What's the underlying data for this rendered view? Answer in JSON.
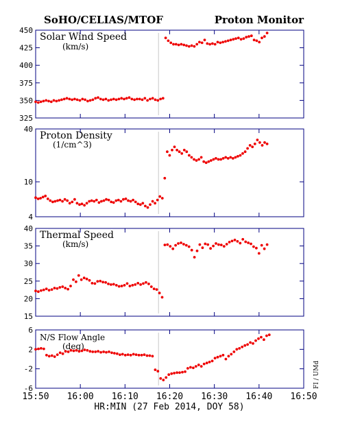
{
  "header": {
    "left": "SoHO/CELIAS/MTOF",
    "right": "Proton Monitor"
  },
  "xaxis": {
    "title": "HR:MIN (27 Feb 2014, DOY 58)",
    "range_minutes": [
      950,
      1010
    ],
    "ticks": [
      {
        "m": 950,
        "label": "15:50"
      },
      {
        "m": 960,
        "label": "16:00"
      },
      {
        "m": 970,
        "label": "16:10"
      },
      {
        "m": 980,
        "label": "16:20"
      },
      {
        "m": 990,
        "label": "16:30"
      },
      {
        "m": 1000,
        "label": "16:40"
      },
      {
        "m": 1010,
        "label": "16:50"
      }
    ],
    "boundary_minute": 977.5
  },
  "side_label": "FI / UMd",
  "point_color": "#ee0000",
  "chart_data": [
    {
      "type": "scatter",
      "title": "Solar Wind Speed",
      "units": "(km/s)",
      "ylim": [
        325,
        450
      ],
      "yticks": [
        325,
        350,
        375,
        400,
        425,
        450
      ],
      "ytick_labels": [
        "325",
        "350",
        "375",
        "400",
        "425",
        "450"
      ],
      "y": [
        348,
        347,
        348,
        349,
        350,
        349,
        348,
        350,
        349,
        350,
        351,
        352,
        353,
        352,
        351,
        352,
        351,
        350,
        352,
        351,
        349,
        350,
        351,
        353,
        354,
        352,
        351,
        352,
        350,
        351,
        352,
        351,
        352,
        353,
        352,
        353,
        354,
        352,
        351,
        352,
        352,
        351,
        353,
        350,
        352,
        353,
        351,
        350,
        352,
        353,
        439,
        435,
        432,
        430,
        430,
        429,
        430,
        429,
        428,
        427,
        428,
        427,
        430,
        433,
        432,
        436,
        431,
        430,
        431,
        430,
        433,
        432,
        433,
        434,
        435,
        436,
        437,
        438,
        439,
        437,
        438,
        440,
        441,
        442,
        436,
        435,
        433,
        439,
        441,
        446
      ],
      "x_start": 950,
      "x_end": 1001.8
    },
    {
      "type": "scatter",
      "title": "Proton Density",
      "units": "(1/cm^3)",
      "log": true,
      "ylim": [
        4,
        40
      ],
      "yticks": [
        4,
        10,
        40
      ],
      "ytick_labels": [
        "4",
        "10",
        "40"
      ],
      "y": [
        6.6,
        6.4,
        6.5,
        6.7,
        6.9,
        6.4,
        6.1,
        5.9,
        6.0,
        6.1,
        6.2,
        6.0,
        6.3,
        6.1,
        5.7,
        5.9,
        6.3,
        5.7,
        5.5,
        5.6,
        5.4,
        5.7,
        6.0,
        6.1,
        6.0,
        6.2,
        5.8,
        6.0,
        6.1,
        6.3,
        6.2,
        5.9,
        5.8,
        6.1,
        6.2,
        6.0,
        6.3,
        6.4,
        6.1,
        6.0,
        6.2,
        5.9,
        5.6,
        5.5,
        5.7,
        5.3,
        5.1,
        5.5,
        6.0,
        5.7,
        6.2,
        6.8,
        6.5,
        11.0,
        22.0,
        20.0,
        23.0,
        25.0,
        23.0,
        22.0,
        21.0,
        23.0,
        22.0,
        20.0,
        19.0,
        18.0,
        17.5,
        18.0,
        19.0,
        17.0,
        16.5,
        17.0,
        17.5,
        18.0,
        18.5,
        18.0,
        18.0,
        18.5,
        19.0,
        18.5,
        19.0,
        18.5,
        19.0,
        19.5,
        20.0,
        21.0,
        22.0,
        24.0,
        26.0,
        25.0,
        27.0,
        30.0,
        28.0,
        26.0,
        28.0,
        27.0
      ],
      "x_start": 950,
      "x_end": 1001.8
    },
    {
      "type": "scatter",
      "title": "Thermal Speed",
      "units": "(km/s)",
      "ylim": [
        15,
        40
      ],
      "yticks": [
        15,
        20,
        25,
        30,
        35,
        40
      ],
      "ytick_labels": [
        "15",
        "20",
        "25",
        "30",
        "35",
        "40"
      ],
      "y": [
        22.2,
        22.0,
        22.3,
        22.5,
        22.8,
        22.4,
        22.6,
        23.0,
        22.9,
        23.2,
        23.4,
        23.0,
        22.7,
        23.6,
        25.4,
        24.8,
        26.6,
        25.4,
        25.9,
        25.6,
        25.2,
        24.4,
        24.3,
        24.9,
        25.0,
        24.7,
        24.6,
        24.2,
        24.0,
        24.1,
        23.8,
        23.5,
        23.6,
        23.8,
        24.3,
        23.6,
        23.8,
        24.0,
        24.4,
        24.0,
        24.3,
        24.6,
        24.2,
        23.4,
        22.8,
        22.6,
        21.6,
        20.4,
        35.3,
        35.4,
        34.9,
        34.2,
        35.2,
        35.7,
        35.9,
        35.5,
        35.2,
        34.8,
        33.8,
        31.8,
        33.6,
        35.4,
        34.5,
        35.6,
        35.4,
        34.3,
        35.0,
        35.7,
        35.4,
        35.3,
        34.9,
        35.5,
        36.1,
        36.4,
        36.7,
        36.3,
        35.8,
        36.9,
        36.2,
        35.9,
        35.6,
        34.8,
        34.4,
        32.9,
        35.2,
        34.2,
        35.4
      ],
      "x_start": 950,
      "x_end": 1001.8
    },
    {
      "type": "scatter",
      "title": "N/S Flow Angle",
      "units": "(deg)",
      "ylim": [
        -6,
        6
      ],
      "yticks": [
        -6,
        -2,
        2,
        6
      ],
      "ytick_labels": [
        "-6",
        "-2",
        "2",
        "6"
      ],
      "y": [
        2.0,
        2.1,
        2.2,
        2.1,
        0.8,
        0.6,
        0.7,
        0.5,
        0.9,
        1.3,
        1.1,
        1.6,
        1.5,
        1.8,
        1.7,
        1.8,
        1.6,
        1.7,
        1.9,
        1.8,
        1.6,
        1.5,
        1.5,
        1.6,
        1.4,
        1.5,
        1.4,
        1.5,
        1.3,
        1.2,
        1.1,
        0.9,
        1.0,
        0.8,
        0.9,
        0.8,
        1.0,
        0.9,
        0.8,
        0.8,
        0.9,
        0.7,
        0.7,
        0.6,
        -2.2,
        -2.5,
        -4.0,
        -4.3,
        -3.8,
        -3.2,
        -3.0,
        -2.9,
        -2.8,
        -2.8,
        -2.7,
        -2.6,
        -1.9,
        -1.7,
        -1.8,
        -1.5,
        -1.2,
        -1.5,
        -1.0,
        -0.8,
        -0.6,
        -0.4,
        0.2,
        0.4,
        0.6,
        0.8,
        0.0,
        0.6,
        1.0,
        1.5,
        2.0,
        2.2,
        2.5,
        2.8,
        3.0,
        3.4,
        3.2,
        3.8,
        4.2,
        4.5,
        4.0,
        4.8,
        5.0
      ],
      "x_start": 950,
      "x_end": 1002.3
    }
  ]
}
